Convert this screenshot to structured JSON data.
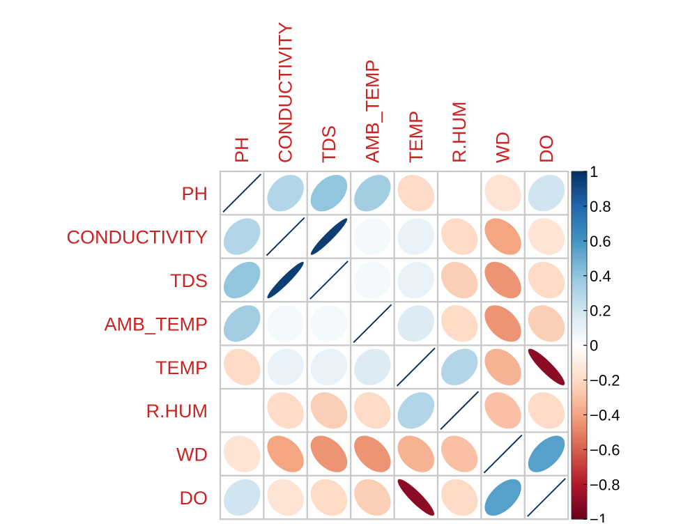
{
  "chart_data": {
    "type": "heatmap",
    "style": "correlation-ellipse-matrix",
    "title": "",
    "variables": [
      "PH",
      "CONDUCTIVITY",
      "TDS",
      "AMB_TEMP",
      "TEMP",
      "R.HUM",
      "WD",
      "DO"
    ],
    "column_labels": [
      "PH",
      "CONDUCTIVITY",
      "TDS",
      "AMB_TEMP",
      "TEMP",
      "R.HUM",
      "WD",
      "DO"
    ],
    "row_labels": [
      "PH",
      "CONDUCTIVITY",
      "TDS",
      "AMB_TEMP",
      "TEMP",
      "R.HUM",
      "WD",
      "DO"
    ],
    "matrix": [
      [
        1.0,
        0.3,
        0.4,
        0.35,
        -0.2,
        0.0,
        -0.15,
        0.2
      ],
      [
        0.3,
        1.0,
        0.95,
        0.05,
        0.1,
        -0.2,
        -0.4,
        -0.15
      ],
      [
        0.4,
        0.95,
        1.0,
        0.05,
        0.1,
        -0.25,
        -0.45,
        -0.2
      ],
      [
        0.35,
        0.05,
        0.05,
        1.0,
        0.15,
        -0.2,
        -0.45,
        -0.25
      ],
      [
        -0.2,
        0.1,
        0.1,
        0.15,
        1.0,
        0.3,
        -0.35,
        -0.9
      ],
      [
        0.0,
        -0.2,
        -0.25,
        -0.2,
        0.3,
        1.0,
        -0.3,
        -0.2
      ],
      [
        -0.15,
        -0.4,
        -0.45,
        -0.45,
        -0.35,
        -0.3,
        1.0,
        0.55
      ],
      [
        0.2,
        -0.15,
        -0.2,
        -0.25,
        -0.9,
        -0.2,
        0.55,
        1.0
      ]
    ],
    "color_scale": {
      "range": [
        -1,
        1
      ],
      "ticks": [
        1,
        0.8,
        0.6,
        0.4,
        0.2,
        0,
        -0.2,
        -0.4,
        -0.6,
        -0.8,
        -1
      ],
      "tick_labels": [
        "1",
        "0.8",
        "0.6",
        "0.4",
        "0.2",
        "0",
        "−0.2",
        "−0.4",
        "−0.6",
        "−0.8",
        "−1"
      ],
      "colors": [
        "#67001f",
        "#b2182b",
        "#d6604d",
        "#f4a582",
        "#fddbc7",
        "#ffffff",
        "#d1e5f0",
        "#92c5de",
        "#4393c3",
        "#2166ac",
        "#053061"
      ]
    },
    "label_color": "#cc2222",
    "grid_color": "#c8c8c8",
    "diagonal_line_color": "#0c3660",
    "legend_position": "right",
    "grid": true
  }
}
